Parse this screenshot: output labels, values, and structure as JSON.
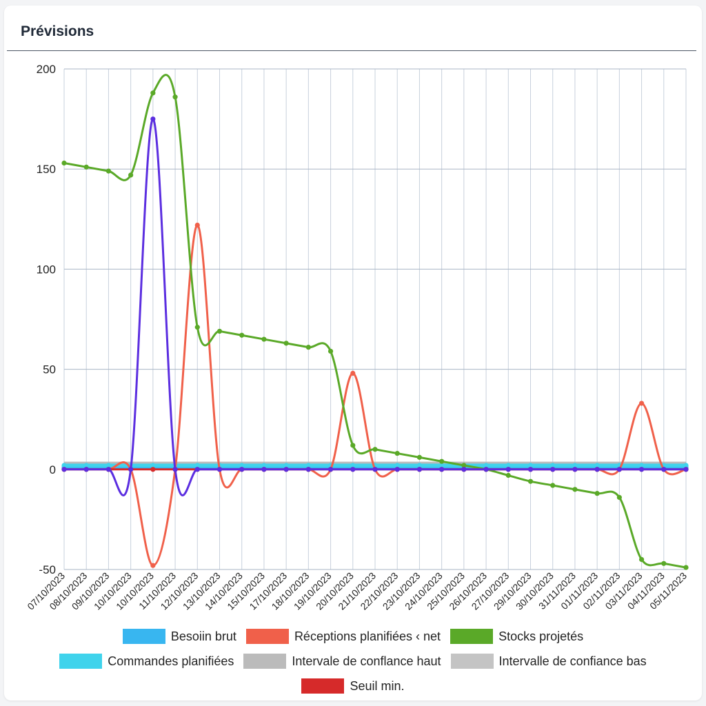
{
  "card": {
    "title": "Prévisions"
  },
  "chart_data": {
    "type": "line",
    "ylim": [
      -50,
      200
    ],
    "yticks": [
      200,
      150,
      100,
      50,
      0,
      -50
    ],
    "grid": true,
    "legend_position": "bottom",
    "categories": [
      "07/10/2023",
      "08/10/2023",
      "09/10/2023",
      "10/10/2023",
      "10/10/2023",
      "11/10/2023",
      "12/10/2023",
      "13/10/2023",
      "14/10/2023",
      "15/10/2023",
      "17/10/2023",
      "18/10/2023",
      "19/10/2023",
      "20/10/2023",
      "21/10/2023",
      "22/10/2023",
      "23/10/2023",
      "24/10/2023",
      "25/10/2023",
      "26/10/2023",
      "27/10/2023",
      "29/10/2023",
      "30/10/2023",
      "31/11/2023",
      "01/11/2023",
      "02/11/2023",
      "03/11/2023",
      "04/11/2023",
      "05/11/2023"
    ],
    "series": [
      {
        "name": "Besoiin brut",
        "color": "#38b6f0",
        "values": [
          1,
          1,
          1,
          1,
          1,
          1,
          1,
          1,
          1,
          1,
          1,
          1,
          1,
          1,
          1,
          1,
          1,
          1,
          1,
          1,
          1,
          1,
          1,
          1,
          1,
          1,
          1,
          1,
          1
        ]
      },
      {
        "name": "Réceptions planifiées ‹ net",
        "color": "#f0604a",
        "values": [
          0,
          0,
          0,
          0,
          -48,
          0,
          122,
          0,
          0,
          0,
          0,
          0,
          0,
          48,
          0,
          0,
          0,
          0,
          0,
          0,
          0,
          0,
          0,
          0,
          0,
          0,
          33,
          0,
          0
        ]
      },
      {
        "name": "Stocks projetés",
        "color": "#5aa928",
        "values": [
          153,
          151,
          149,
          147,
          188,
          186,
          71,
          69,
          67,
          65,
          63,
          61,
          59,
          12,
          10,
          8,
          6,
          4,
          2,
          0,
          -3,
          -6,
          -8,
          -10,
          -12,
          -14,
          -45,
          -47,
          -49
        ]
      },
      {
        "name": "Commandes planifiées",
        "color": "#3fd3ec",
        "values": [
          2,
          2,
          2,
          2,
          2,
          2,
          2,
          2,
          2,
          2,
          2,
          2,
          2,
          2,
          2,
          2,
          2,
          2,
          2,
          2,
          2,
          2,
          2,
          2,
          2,
          2,
          2,
          2,
          2
        ]
      },
      {
        "name": "Intervale de conflance haut",
        "color": "#bbbbbb",
        "values": [
          3,
          3,
          3,
          3,
          3,
          3,
          3,
          3,
          3,
          3,
          3,
          3,
          3,
          3,
          3,
          3,
          3,
          3,
          3,
          3,
          3,
          3,
          3,
          3,
          3,
          3,
          3,
          3,
          3
        ]
      },
      {
        "name": "Intervalle de confiance bas",
        "color": "#c4c4c4",
        "values": [
          2,
          2,
          2,
          2,
          2,
          2,
          2,
          2,
          2,
          2,
          2,
          2,
          2,
          2,
          2,
          2,
          2,
          2,
          2,
          2,
          2,
          2,
          2,
          2,
          2,
          2,
          2,
          2,
          2
        ]
      },
      {
        "name": "Seuil min.",
        "color": "#d62a2a",
        "values": [
          0,
          0,
          0,
          0,
          0,
          0,
          0,
          0,
          0,
          0,
          0,
          0,
          0,
          0,
          0,
          0,
          0,
          0,
          0,
          0,
          0,
          0,
          0,
          0,
          0,
          0,
          0,
          0,
          0
        ]
      },
      {
        "name": "",
        "color": "#5b2ee0",
        "values": [
          0,
          0,
          0,
          0,
          175,
          0,
          0,
          0,
          0,
          0,
          0,
          0,
          0,
          0,
          0,
          0,
          0,
          0,
          0,
          0,
          0,
          0,
          0,
          0,
          0,
          0,
          0,
          0,
          0
        ]
      }
    ],
    "legend_rows": [
      [
        0,
        1,
        2
      ],
      [
        3,
        4,
        5
      ],
      [
        6
      ]
    ]
  }
}
